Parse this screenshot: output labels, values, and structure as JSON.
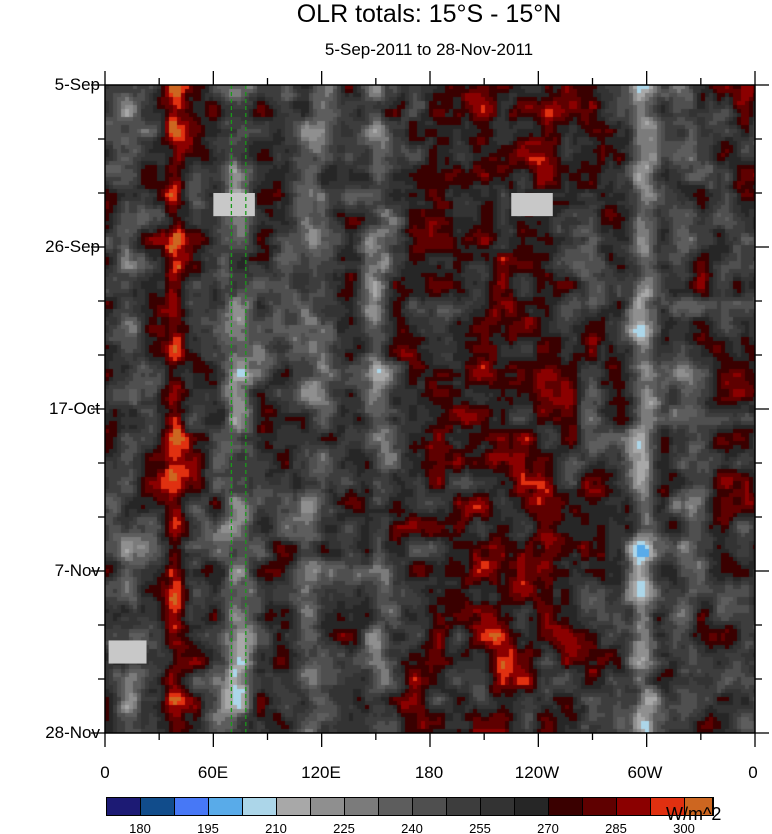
{
  "chart_data": {
    "type": "heatmap",
    "title": "OLR totals: 15°S - 15°N",
    "subtitle": "5-Sep-2011 to 28-Nov-2011",
    "x_ticks": [
      "0",
      "60E",
      "120E",
      "180",
      "120W",
      "60W",
      "0"
    ],
    "x_range": [
      0,
      360
    ],
    "y_ticks": [
      "5-Sep",
      "26-Sep",
      "17-Oct",
      "7-Nov",
      "28-Nov"
    ],
    "y_range_days": [
      0,
      84
    ],
    "colorbar": {
      "units": "W/m^2",
      "labels": [
        "180",
        "195",
        "210",
        "225",
        "240",
        "255",
        "270",
        "285",
        "300"
      ],
      "levels_start": 172.5,
      "level_step": 7.5,
      "colors": [
        "#1c1a74",
        "#114c8b",
        "#4778f6",
        "#59abe9",
        "#acd6e9",
        "#a8a8a8",
        "#8f8f8f",
        "#7b7b7b",
        "#5d5d5d",
        "#4f4f4f",
        "#3d3d3d",
        "#333333",
        "#262626",
        "#3a0000",
        "#5f0000",
        "#8b0000",
        "#e03010",
        "#cd6620"
      ]
    },
    "reference_lines_lon": [
      70,
      78
    ],
    "missing_data": [
      {
        "lon": [
          60,
          83
        ],
        "day": [
          14,
          17
        ]
      },
      {
        "lon": [
          225,
          248
        ],
        "day": [
          14,
          17
        ]
      },
      {
        "lon": [
          2,
          23
        ],
        "day": [
          72,
          75
        ]
      }
    ]
  }
}
